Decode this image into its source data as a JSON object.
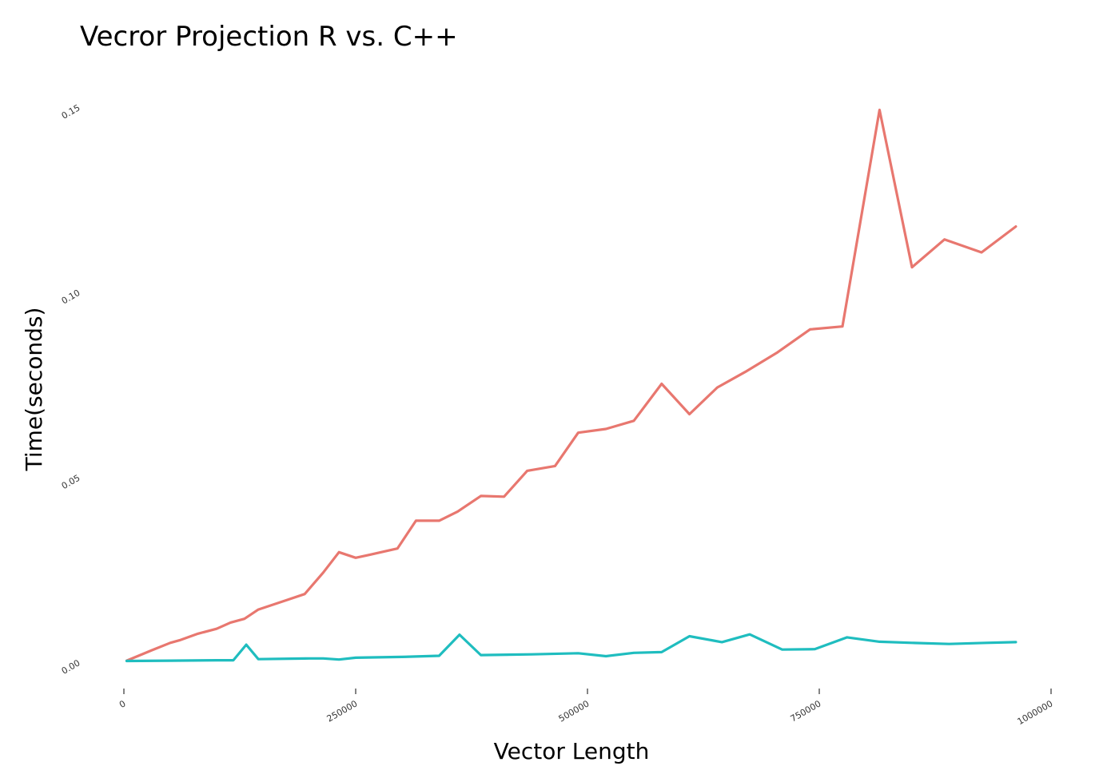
{
  "chart_data": {
    "type": "line",
    "title": "Vecror Projection R vs. C++",
    "xlabel": "Vector Length",
    "ylabel": "Time(seconds)",
    "xlim": [
      0,
      1000000
    ],
    "ylim": [
      0,
      0.15
    ],
    "x_ticks": [
      0,
      250000,
      500000,
      750000,
      1000000
    ],
    "x_tick_labels": [
      "0",
      "250000",
      "500000",
      "750000",
      "1000000"
    ],
    "y_ticks": [
      0,
      0.05,
      0.1,
      0.15
    ],
    "y_tick_labels": [
      "0.00",
      "0.05",
      "0.10",
      "0.15"
    ],
    "grid": false,
    "legend": "none",
    "series": [
      {
        "color": "#E8776F",
        "x": [
          3000,
          30000,
          50000,
          60000,
          80000,
          100000,
          115000,
          130000,
          145000,
          175000,
          195000,
          215000,
          232000,
          250000,
          265000,
          295000,
          315000,
          340000,
          360000,
          385000,
          410000,
          435000,
          465000,
          490000,
          520000,
          550000,
          580000,
          610000,
          640000,
          670000,
          705000,
          740000,
          775000,
          815000,
          850000,
          885000,
          925000,
          962000
        ],
        "y": [
          0.0002,
          0.003,
          0.005,
          0.0057,
          0.0075,
          0.0088,
          0.0105,
          0.0115,
          0.014,
          0.0165,
          0.0182,
          0.024,
          0.0295,
          0.028,
          0.0288,
          0.0305,
          0.038,
          0.038,
          0.0405,
          0.0447,
          0.0445,
          0.0515,
          0.0528,
          0.0618,
          0.0628,
          0.065,
          0.075,
          0.0668,
          0.074,
          0.0782,
          0.0835,
          0.0897,
          0.0905,
          0.149,
          0.1065,
          0.114,
          0.1105,
          0.1175
        ]
      },
      {
        "color": "#1FBDBF",
        "x": [
          3000,
          50000,
          100000,
          118000,
          132000,
          145000,
          200000,
          215000,
          232000,
          250000,
          300000,
          340000,
          362000,
          385000,
          440000,
          490000,
          520000,
          550000,
          580000,
          610000,
          645000,
          675000,
          710000,
          745000,
          780000,
          815000,
          850000,
          890000,
          930000,
          962000
        ],
        "y": [
          0.0001,
          0.0002,
          0.0003,
          0.0003,
          0.0045,
          0.0006,
          0.0008,
          0.0008,
          0.0005,
          0.001,
          0.0012,
          0.0015,
          0.0072,
          0.0017,
          0.0019,
          0.0022,
          0.0014,
          0.0023,
          0.0025,
          0.0068,
          0.0052,
          0.0073,
          0.0032,
          0.0033,
          0.0065,
          0.0053,
          0.005,
          0.0047,
          0.005,
          0.0052
        ]
      }
    ]
  }
}
